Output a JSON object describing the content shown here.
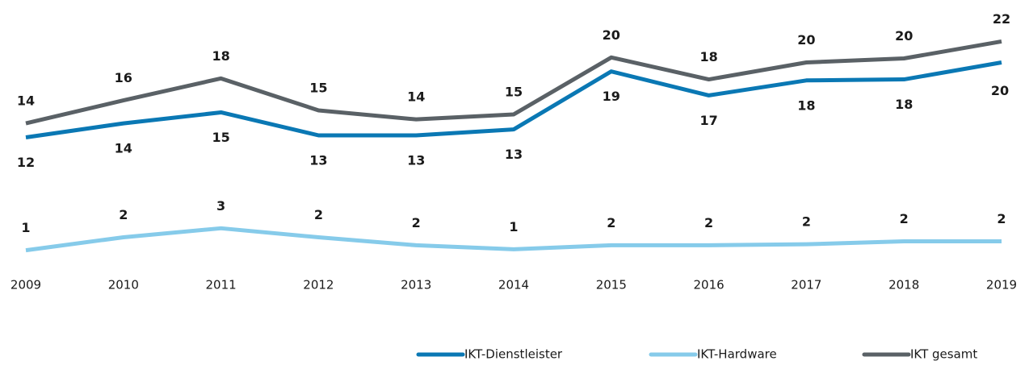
{
  "chart_data": {
    "type": "line",
    "categories": [
      "2009",
      "2010",
      "2011",
      "2012",
      "2013",
      "2014",
      "2015",
      "2016",
      "2017",
      "2018",
      "2019"
    ],
    "series": [
      {
        "name": "IKT-Dienstleister",
        "color": "#0a78b4",
        "values": [
          12.3,
          13.7,
          14.8,
          12.5,
          12.5,
          13.1,
          18.9,
          16.5,
          18.0,
          18.1,
          19.8
        ],
        "value_labels": [
          "12",
          "14",
          "15",
          "13",
          "13",
          "13",
          "19",
          "17",
          "18",
          "18",
          "20"
        ]
      },
      {
        "name": "IKT-Hardware",
        "color": "#86cbea",
        "values": [
          1.0,
          2.3,
          3.2,
          2.3,
          1.5,
          1.1,
          1.5,
          1.5,
          1.6,
          1.9,
          1.9
        ],
        "value_labels": [
          "1",
          "2",
          "3",
          "2",
          "2",
          "1",
          "2",
          "2",
          "2",
          "2",
          "2"
        ]
      },
      {
        "name": "IKT gesamt",
        "color": "#5a6166",
        "values": [
          13.7,
          16.0,
          18.2,
          15.0,
          14.1,
          14.6,
          20.3,
          18.1,
          19.8,
          20.2,
          21.9
        ],
        "value_labels": [
          "14",
          "16",
          "18",
          "15",
          "14",
          "15",
          "20",
          "18",
          "20",
          "20",
          "22"
        ]
      }
    ]
  }
}
